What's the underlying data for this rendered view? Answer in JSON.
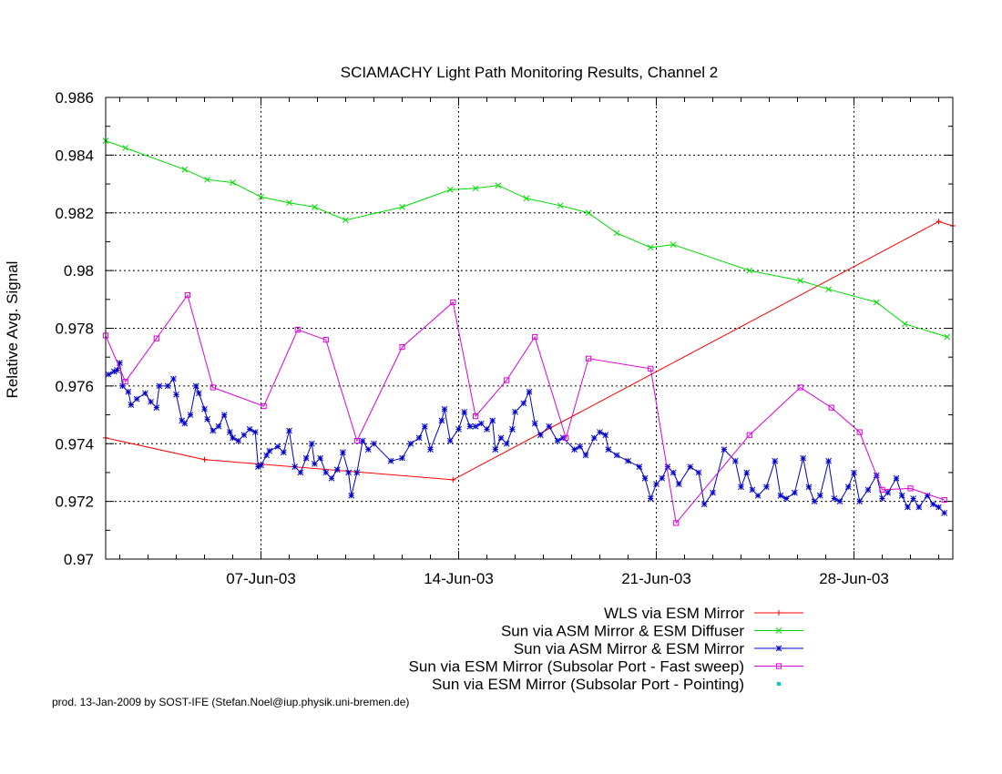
{
  "chart_data": {
    "type": "line",
    "title": "SCIAMACHY Light Path Monitoring Results, Channel 2",
    "xlabel": "",
    "ylabel": "Relative Avg. Signal",
    "x_unit": "days of June 2003",
    "xlim": [
      1.5,
      31.5
    ],
    "ylim": [
      0.97,
      0.986
    ],
    "yticks": [
      "0.97",
      "0.972",
      "0.974",
      "0.976",
      "0.978",
      "0.98",
      "0.982",
      "0.984",
      "0.986"
    ],
    "xticks": [
      {
        "x": 7,
        "label": "07-Jun-03"
      },
      {
        "x": 14,
        "label": "14-Jun-03"
      },
      {
        "x": 21,
        "label": "21-Jun-03"
      },
      {
        "x": 28,
        "label": "28-Jun-03"
      }
    ],
    "grid": true,
    "legend_position": "bottom-right",
    "series": [
      {
        "name": "WLS via ESM Mirror",
        "color": "#ff0000",
        "marker": "plus",
        "points": [
          [
            1.5,
            0.9742
          ],
          [
            5.0,
            0.97345
          ],
          [
            13.8,
            0.97275
          ],
          [
            31.0,
            0.9817
          ],
          [
            31.5,
            0.98155
          ]
        ]
      },
      {
        "name": "Sun via ASM Mirror & ESM Diffuser",
        "color": "#00dd00",
        "marker": "cross",
        "points": [
          [
            1.5,
            0.9845
          ],
          [
            2.2,
            0.98425
          ],
          [
            4.3,
            0.9835
          ],
          [
            5.1,
            0.98315
          ],
          [
            6.0,
            0.98305
          ],
          [
            7.0,
            0.98255
          ],
          [
            8.0,
            0.98235
          ],
          [
            8.9,
            0.9822
          ],
          [
            10.0,
            0.98175
          ],
          [
            12.0,
            0.9822
          ],
          [
            13.7,
            0.9828
          ],
          [
            14.6,
            0.98285
          ],
          [
            15.4,
            0.98295
          ],
          [
            16.4,
            0.9825
          ],
          [
            17.6,
            0.98225
          ],
          [
            18.6,
            0.982
          ],
          [
            19.6,
            0.9813
          ],
          [
            20.8,
            0.9808
          ],
          [
            21.6,
            0.9809
          ],
          [
            24.3,
            0.98
          ],
          [
            26.1,
            0.97965
          ],
          [
            27.1,
            0.97935
          ],
          [
            28.8,
            0.9789
          ],
          [
            29.8,
            0.97815
          ],
          [
            31.3,
            0.9777
          ]
        ]
      },
      {
        "name": "Sun via ASM Mirror & ESM Mirror",
        "color": "#0000cc",
        "marker": "star",
        "points": [
          [
            1.6,
            0.9764
          ],
          [
            1.8,
            0.9765
          ],
          [
            1.9,
            0.97655
          ],
          [
            2.0,
            0.9768
          ],
          [
            2.1,
            0.976
          ],
          [
            2.3,
            0.9758
          ],
          [
            2.4,
            0.97535
          ],
          [
            2.6,
            0.97555
          ],
          [
            2.9,
            0.97575
          ],
          [
            3.1,
            0.97545
          ],
          [
            3.3,
            0.97525
          ],
          [
            3.4,
            0.976
          ],
          [
            3.7,
            0.976
          ],
          [
            3.9,
            0.97625
          ],
          [
            4.0,
            0.9757
          ],
          [
            4.2,
            0.9748
          ],
          [
            4.3,
            0.9747
          ],
          [
            4.5,
            0.975
          ],
          [
            4.7,
            0.976
          ],
          [
            4.8,
            0.97575
          ],
          [
            5.0,
            0.9752
          ],
          [
            5.1,
            0.97485
          ],
          [
            5.3,
            0.97445
          ],
          [
            5.5,
            0.9746
          ],
          [
            5.7,
            0.975
          ],
          [
            5.9,
            0.9744
          ],
          [
            6.0,
            0.9742
          ],
          [
            6.2,
            0.9741
          ],
          [
            6.4,
            0.9743
          ],
          [
            6.6,
            0.9745
          ],
          [
            6.8,
            0.9744
          ],
          [
            6.9,
            0.9732
          ],
          [
            7.0,
            0.97325
          ],
          [
            7.2,
            0.9736
          ],
          [
            7.3,
            0.97375
          ],
          [
            7.6,
            0.9739
          ],
          [
            7.8,
            0.9737
          ],
          [
            8.0,
            0.97445
          ],
          [
            8.2,
            0.9732
          ],
          [
            8.4,
            0.973
          ],
          [
            8.6,
            0.9735
          ],
          [
            8.8,
            0.974
          ],
          [
            8.9,
            0.9733
          ],
          [
            9.1,
            0.9735
          ],
          [
            9.3,
            0.973
          ],
          [
            9.5,
            0.9728
          ],
          [
            9.7,
            0.9731
          ],
          [
            9.9,
            0.9737
          ],
          [
            10.1,
            0.973
          ],
          [
            10.2,
            0.9722
          ],
          [
            10.4,
            0.973
          ],
          [
            10.6,
            0.9741
          ],
          [
            10.8,
            0.9738
          ],
          [
            11.0,
            0.974
          ],
          [
            11.6,
            0.9734
          ],
          [
            12.0,
            0.9735
          ],
          [
            12.3,
            0.974
          ],
          [
            12.6,
            0.9742
          ],
          [
            12.8,
            0.9746
          ],
          [
            13.0,
            0.9738
          ],
          [
            13.4,
            0.9748
          ],
          [
            13.5,
            0.9752
          ],
          [
            13.7,
            0.9741
          ],
          [
            14.0,
            0.9745
          ],
          [
            14.2,
            0.9751
          ],
          [
            14.4,
            0.9746
          ],
          [
            14.6,
            0.9746
          ],
          [
            14.8,
            0.9747
          ],
          [
            15.0,
            0.9745
          ],
          [
            15.2,
            0.9748
          ],
          [
            15.3,
            0.9738
          ],
          [
            15.5,
            0.9742
          ],
          [
            15.7,
            0.974
          ],
          [
            15.9,
            0.9745
          ],
          [
            16.0,
            0.9751
          ],
          [
            16.3,
            0.9754
          ],
          [
            16.5,
            0.9758
          ],
          [
            16.7,
            0.9747
          ],
          [
            16.9,
            0.9743
          ],
          [
            17.2,
            0.9746
          ],
          [
            17.5,
            0.9741
          ],
          [
            17.7,
            0.9742
          ],
          [
            18.1,
            0.9738
          ],
          [
            18.3,
            0.9739
          ],
          [
            18.5,
            0.9736
          ],
          [
            18.8,
            0.9742
          ],
          [
            19.0,
            0.9744
          ],
          [
            19.2,
            0.9743
          ],
          [
            19.3,
            0.9738
          ],
          [
            19.6,
            0.9736
          ],
          [
            20.0,
            0.9734
          ],
          [
            20.4,
            0.9732
          ],
          [
            20.6,
            0.9728
          ],
          [
            20.8,
            0.9721
          ],
          [
            21.0,
            0.9726
          ],
          [
            21.2,
            0.9728
          ],
          [
            21.4,
            0.9732
          ],
          [
            21.6,
            0.973
          ],
          [
            21.8,
            0.9726
          ],
          [
            22.2,
            0.9732
          ],
          [
            22.5,
            0.973
          ],
          [
            22.7,
            0.9719
          ],
          [
            23.0,
            0.9723
          ],
          [
            23.4,
            0.9738
          ],
          [
            23.8,
            0.9734
          ],
          [
            24.0,
            0.9725
          ],
          [
            24.2,
            0.973
          ],
          [
            24.4,
            0.9724
          ],
          [
            24.6,
            0.9722
          ],
          [
            24.9,
            0.9725
          ],
          [
            25.2,
            0.9734
          ],
          [
            25.4,
            0.9722
          ],
          [
            25.6,
            0.9721
          ],
          [
            25.9,
            0.9723
          ],
          [
            26.2,
            0.9735
          ],
          [
            26.4,
            0.9725
          ],
          [
            26.6,
            0.972
          ],
          [
            26.8,
            0.9722
          ],
          [
            27.1,
            0.9734
          ],
          [
            27.3,
            0.9721
          ],
          [
            27.5,
            0.972
          ],
          [
            27.8,
            0.9725
          ],
          [
            28.0,
            0.973
          ],
          [
            28.2,
            0.972
          ],
          [
            28.5,
            0.9724
          ],
          [
            28.8,
            0.9729
          ],
          [
            29.0,
            0.9721
          ],
          [
            29.2,
            0.9723
          ],
          [
            29.5,
            0.9728
          ],
          [
            29.7,
            0.9722
          ],
          [
            29.9,
            0.9718
          ],
          [
            30.1,
            0.9721
          ],
          [
            30.3,
            0.9718
          ],
          [
            30.6,
            0.9722
          ],
          [
            30.8,
            0.9719
          ],
          [
            31.0,
            0.9718
          ],
          [
            31.2,
            0.9716
          ]
        ]
      },
      {
        "name": "Sun via ESM Mirror (Subsolar Port - Fast sweep)",
        "color": "#dd00dd",
        "marker": "square",
        "points": [
          [
            1.5,
            0.97775
          ],
          [
            2.2,
            0.97615
          ],
          [
            3.3,
            0.97765
          ],
          [
            4.4,
            0.97915
          ],
          [
            5.3,
            0.97595
          ],
          [
            7.1,
            0.9753
          ],
          [
            8.3,
            0.97795
          ],
          [
            9.3,
            0.9776
          ],
          [
            10.4,
            0.9741
          ],
          [
            12.0,
            0.97735
          ],
          [
            13.8,
            0.9789
          ],
          [
            14.6,
            0.97495
          ],
          [
            15.7,
            0.9762
          ],
          [
            16.7,
            0.9777
          ],
          [
            17.8,
            0.9742
          ],
          [
            18.6,
            0.97695
          ],
          [
            20.8,
            0.9766
          ],
          [
            21.7,
            0.97125
          ],
          [
            24.3,
            0.9743
          ],
          [
            26.1,
            0.97595
          ],
          [
            27.2,
            0.97525
          ],
          [
            28.2,
            0.9744
          ],
          [
            29.0,
            0.9724
          ],
          [
            30.0,
            0.97245
          ],
          [
            31.2,
            0.97205
          ]
        ]
      },
      {
        "name": "Sun via ESM Mirror (Subsolar Port - Pointing)",
        "color": "#00cccc",
        "marker": "dot",
        "points": []
      }
    ]
  },
  "credit": "prod. 13-Jan-2009 by SOST-IFE (Stefan.Noel@iup.physik.uni-bremen.de)"
}
